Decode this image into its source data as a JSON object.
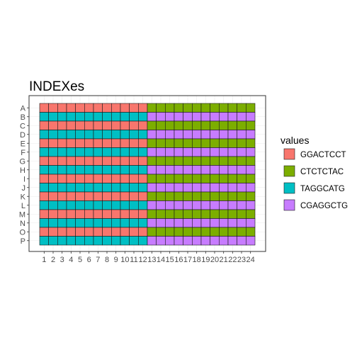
{
  "chart_data": {
    "type": "heatmap",
    "title": "INDEXes",
    "xlabel": "",
    "ylabel": "",
    "x": [
      "1",
      "2",
      "3",
      "4",
      "5",
      "6",
      "7",
      "8",
      "9",
      "10",
      "11",
      "12",
      "13",
      "14",
      "15",
      "16",
      "17",
      "18",
      "19",
      "20",
      "21",
      "22",
      "23",
      "24"
    ],
    "y": [
      "A",
      "B",
      "C",
      "D",
      "E",
      "F",
      "G",
      "H",
      "I",
      "J",
      "K",
      "L",
      "M",
      "N",
      "O",
      "P"
    ],
    "grid": true,
    "legend": {
      "title": "values",
      "placement": "right",
      "entries": [
        {
          "label": "GGACTCCT",
          "color": "#F8766D"
        },
        {
          "label": "CTCTCTAC",
          "color": "#7CAE00"
        },
        {
          "label": "TAGGCATG",
          "color": "#00BFC4"
        },
        {
          "label": "CGAGGCTG",
          "color": "#C77CFF"
        }
      ]
    },
    "rules": [
      {
        "rows": "odd (A,C,E,...)",
        "columns": "1-12",
        "value": "GGACTCCT"
      },
      {
        "rows": "odd (A,C,E,...)",
        "columns": "13-24",
        "value": "CTCTCTAC"
      },
      {
        "rows": "even (B,D,F,...)",
        "columns": "1-12",
        "value": "TAGGCATG"
      },
      {
        "rows": "even (B,D,F,...)",
        "columns": "13-24",
        "value": "CGAGGCTG"
      }
    ]
  }
}
